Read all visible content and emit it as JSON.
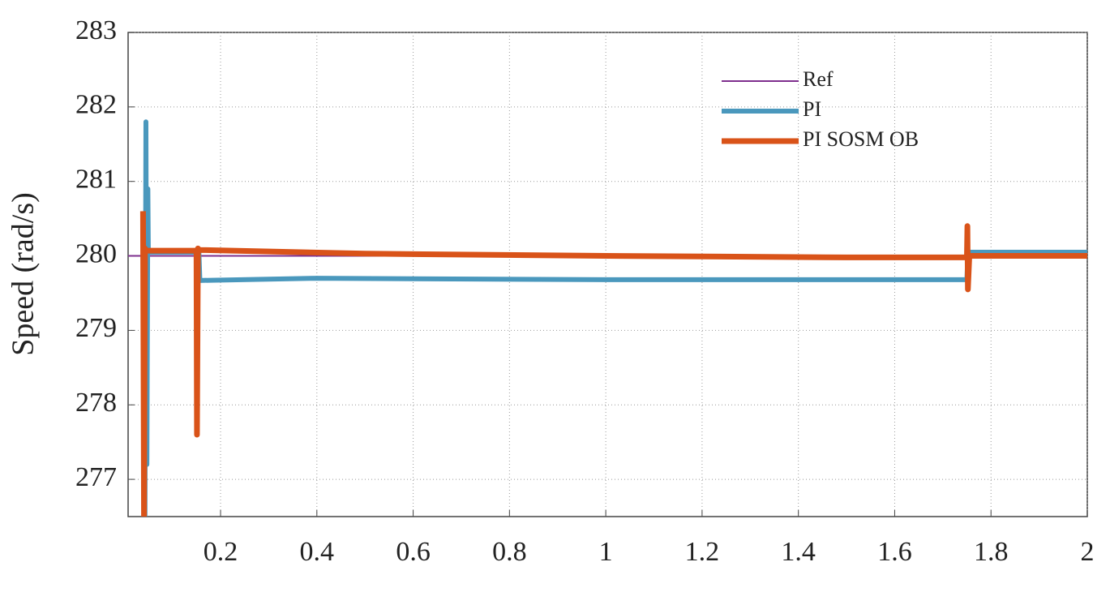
{
  "chart_data": {
    "type": "line",
    "y_label": "Speed (rad/s)",
    "xlim": [
      0.008,
      2
    ],
    "ylim": [
      276.5,
      283
    ],
    "xticks": [
      0.2,
      0.4,
      0.6,
      0.8,
      1,
      1.2,
      1.4,
      1.6,
      1.8,
      2
    ],
    "yticks": [
      277,
      278,
      279,
      280,
      281,
      282,
      283
    ],
    "grid": true,
    "legend": "upper right",
    "series": [
      {
        "name": "Ref",
        "color": "#7e2f8e",
        "x": [
          0.008,
          2
        ],
        "values": [
          280,
          280
        ]
      },
      {
        "name": "PI",
        "color": "#4a98bd",
        "x": [
          0.043,
          0.045,
          0.047,
          0.049,
          0.05,
          0.155,
          0.157,
          0.4,
          1.0,
          1.75,
          1.752,
          2
        ],
        "values": [
          276.5,
          281.8,
          277.2,
          280.9,
          280.05,
          280.05,
          279.67,
          279.7,
          279.68,
          279.68,
          280.05,
          280.05
        ]
      },
      {
        "name": "PI SOSM OB",
        "color": "#d95319",
        "x": [
          0.039,
          0.041,
          0.043,
          0.045,
          0.15,
          0.151,
          0.153,
          0.156,
          0.5,
          1.0,
          1.5,
          1.75,
          1.751,
          1.752,
          1.755,
          2
        ],
        "values": [
          280.6,
          276.5,
          280.1,
          280.07,
          280.07,
          277.6,
          280.1,
          280.08,
          280.03,
          280.0,
          279.98,
          279.98,
          280.4,
          279.55,
          280.0,
          280.0
        ]
      }
    ]
  }
}
